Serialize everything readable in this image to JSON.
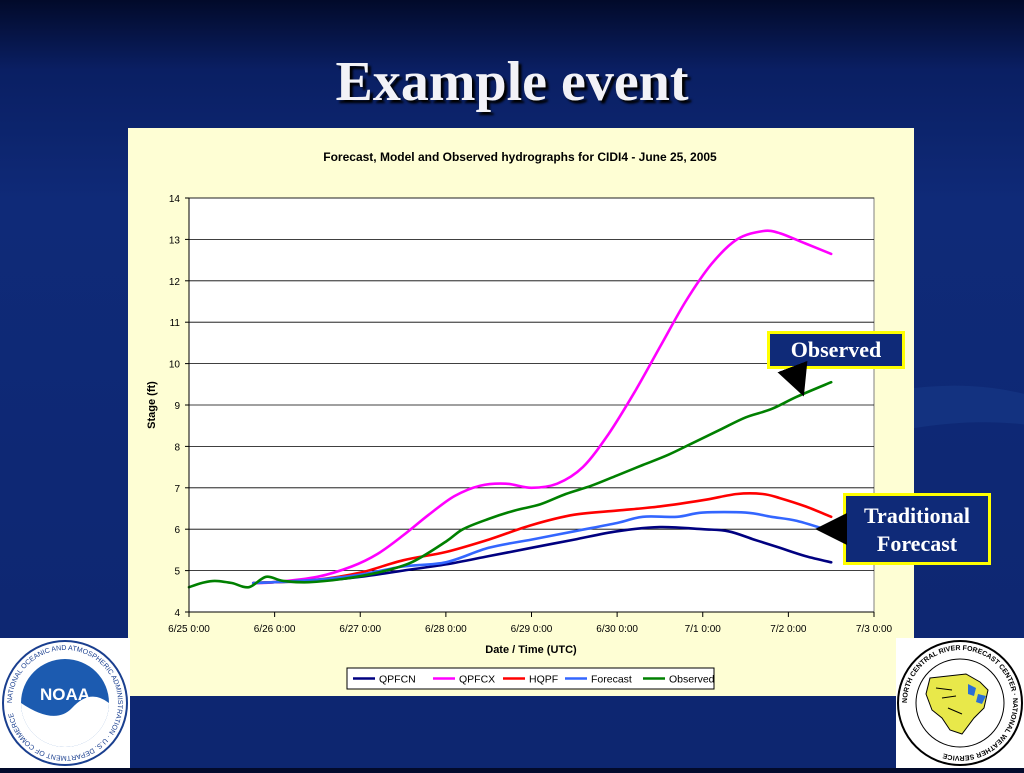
{
  "slide": {
    "title": "Example event"
  },
  "callouts": {
    "observed": "Observed",
    "traditional_line1": "Traditional",
    "traditional_line2": "Forecast"
  },
  "logos": {
    "noaa": {
      "name": "noaa-logo",
      "text": "NOAA",
      "ring_text": "NATIONAL OCEANIC AND ATMOSPHERIC ADMINISTRATION · U.S. DEPARTMENT OF COMMERCE"
    },
    "ncrfc": {
      "name": "ncrfc-logo",
      "ring_text": "NORTH CENTRAL RIVER FORECAST CENTER · NATIONAL WEATHER SERVICE"
    }
  },
  "colors": {
    "background": "#0f2a78",
    "chart_panel": "#fefed4",
    "callout_border": "#ffff00"
  },
  "chart_data": {
    "type": "line",
    "title": "Forecast, Model and Observed hydrographs for CIDI4 - June 25, 2005",
    "xlabel": "Date / Time (UTC)",
    "ylabel": "Stage (ft)",
    "ylim": [
      4,
      14
    ],
    "yticks": [
      4,
      5,
      6,
      7,
      8,
      9,
      10,
      11,
      12,
      13,
      14
    ],
    "xlim": [
      0,
      8
    ],
    "xtick_labels": [
      "6/25 0:00",
      "6/26 0:00",
      "6/27 0:00",
      "6/28 0:00",
      "6/29 0:00",
      "6/30 0:00",
      "7/1 0:00",
      "7/2 0:00",
      "7/3 0:00"
    ],
    "x_unit": "days since 6/25 0:00",
    "grid": "horizontal",
    "legend_position": "bottom",
    "series": [
      {
        "name": "QPFCN",
        "color": "#000080",
        "points": [
          [
            0.75,
            4.7
          ],
          [
            1.0,
            4.72
          ],
          [
            1.5,
            4.75
          ],
          [
            2.0,
            4.85
          ],
          [
            2.5,
            5.0
          ],
          [
            3.0,
            5.15
          ],
          [
            3.5,
            5.35
          ],
          [
            4.0,
            5.55
          ],
          [
            4.5,
            5.75
          ],
          [
            5.0,
            5.95
          ],
          [
            5.5,
            6.05
          ],
          [
            6.0,
            6.0
          ],
          [
            6.3,
            5.95
          ],
          [
            6.6,
            5.75
          ],
          [
            6.9,
            5.55
          ],
          [
            7.2,
            5.35
          ],
          [
            7.5,
            5.2
          ]
        ]
      },
      {
        "name": "QPFCX",
        "color": "#ff00ff",
        "points": [
          [
            0.75,
            4.7
          ],
          [
            1.0,
            4.72
          ],
          [
            1.5,
            4.85
          ],
          [
            1.9,
            5.1
          ],
          [
            2.2,
            5.4
          ],
          [
            2.5,
            5.85
          ],
          [
            2.8,
            6.35
          ],
          [
            3.1,
            6.8
          ],
          [
            3.4,
            7.05
          ],
          [
            3.7,
            7.1
          ],
          [
            4.0,
            7.0
          ],
          [
            4.3,
            7.1
          ],
          [
            4.6,
            7.5
          ],
          [
            4.9,
            8.3
          ],
          [
            5.2,
            9.3
          ],
          [
            5.5,
            10.4
          ],
          [
            5.8,
            11.5
          ],
          [
            6.1,
            12.4
          ],
          [
            6.4,
            13.0
          ],
          [
            6.7,
            13.2
          ],
          [
            6.9,
            13.15
          ],
          [
            7.2,
            12.9
          ],
          [
            7.5,
            12.65
          ]
        ]
      },
      {
        "name": "HQPF",
        "color": "#ff0000",
        "points": [
          [
            0.75,
            4.7
          ],
          [
            1.0,
            4.72
          ],
          [
            1.5,
            4.78
          ],
          [
            2.0,
            4.95
          ],
          [
            2.5,
            5.25
          ],
          [
            3.0,
            5.45
          ],
          [
            3.5,
            5.75
          ],
          [
            4.0,
            6.1
          ],
          [
            4.5,
            6.35
          ],
          [
            5.0,
            6.45
          ],
          [
            5.5,
            6.55
          ],
          [
            6.0,
            6.7
          ],
          [
            6.4,
            6.85
          ],
          [
            6.7,
            6.85
          ],
          [
            6.9,
            6.75
          ],
          [
            7.2,
            6.55
          ],
          [
            7.5,
            6.3
          ]
        ]
      },
      {
        "name": "Forecast",
        "color": "#3366ff",
        "points": [
          [
            0.75,
            4.7
          ],
          [
            1.0,
            4.72
          ],
          [
            1.5,
            4.78
          ],
          [
            2.0,
            4.9
          ],
          [
            2.5,
            5.1
          ],
          [
            3.0,
            5.2
          ],
          [
            3.5,
            5.55
          ],
          [
            4.0,
            5.75
          ],
          [
            4.5,
            5.95
          ],
          [
            5.0,
            6.15
          ],
          [
            5.3,
            6.3
          ],
          [
            5.7,
            6.3
          ],
          [
            6.0,
            6.4
          ],
          [
            6.5,
            6.4
          ],
          [
            6.8,
            6.3
          ],
          [
            7.1,
            6.2
          ],
          [
            7.5,
            5.95
          ]
        ]
      },
      {
        "name": "Observed",
        "color": "#008000",
        "points": [
          [
            0.0,
            4.6
          ],
          [
            0.15,
            4.7
          ],
          [
            0.3,
            4.75
          ],
          [
            0.5,
            4.7
          ],
          [
            0.7,
            4.6
          ],
          [
            0.9,
            4.85
          ],
          [
            1.1,
            4.75
          ],
          [
            1.4,
            4.72
          ],
          [
            1.8,
            4.8
          ],
          [
            2.2,
            4.95
          ],
          [
            2.6,
            5.2
          ],
          [
            3.0,
            5.7
          ],
          [
            3.2,
            6.0
          ],
          [
            3.5,
            6.25
          ],
          [
            3.8,
            6.45
          ],
          [
            4.1,
            6.6
          ],
          [
            4.4,
            6.85
          ],
          [
            4.7,
            7.05
          ],
          [
            5.0,
            7.3
          ],
          [
            5.3,
            7.55
          ],
          [
            5.6,
            7.8
          ],
          [
            5.9,
            8.1
          ],
          [
            6.2,
            8.4
          ],
          [
            6.5,
            8.7
          ],
          [
            6.8,
            8.9
          ],
          [
            7.1,
            9.2
          ],
          [
            7.5,
            9.55
          ]
        ]
      }
    ]
  }
}
